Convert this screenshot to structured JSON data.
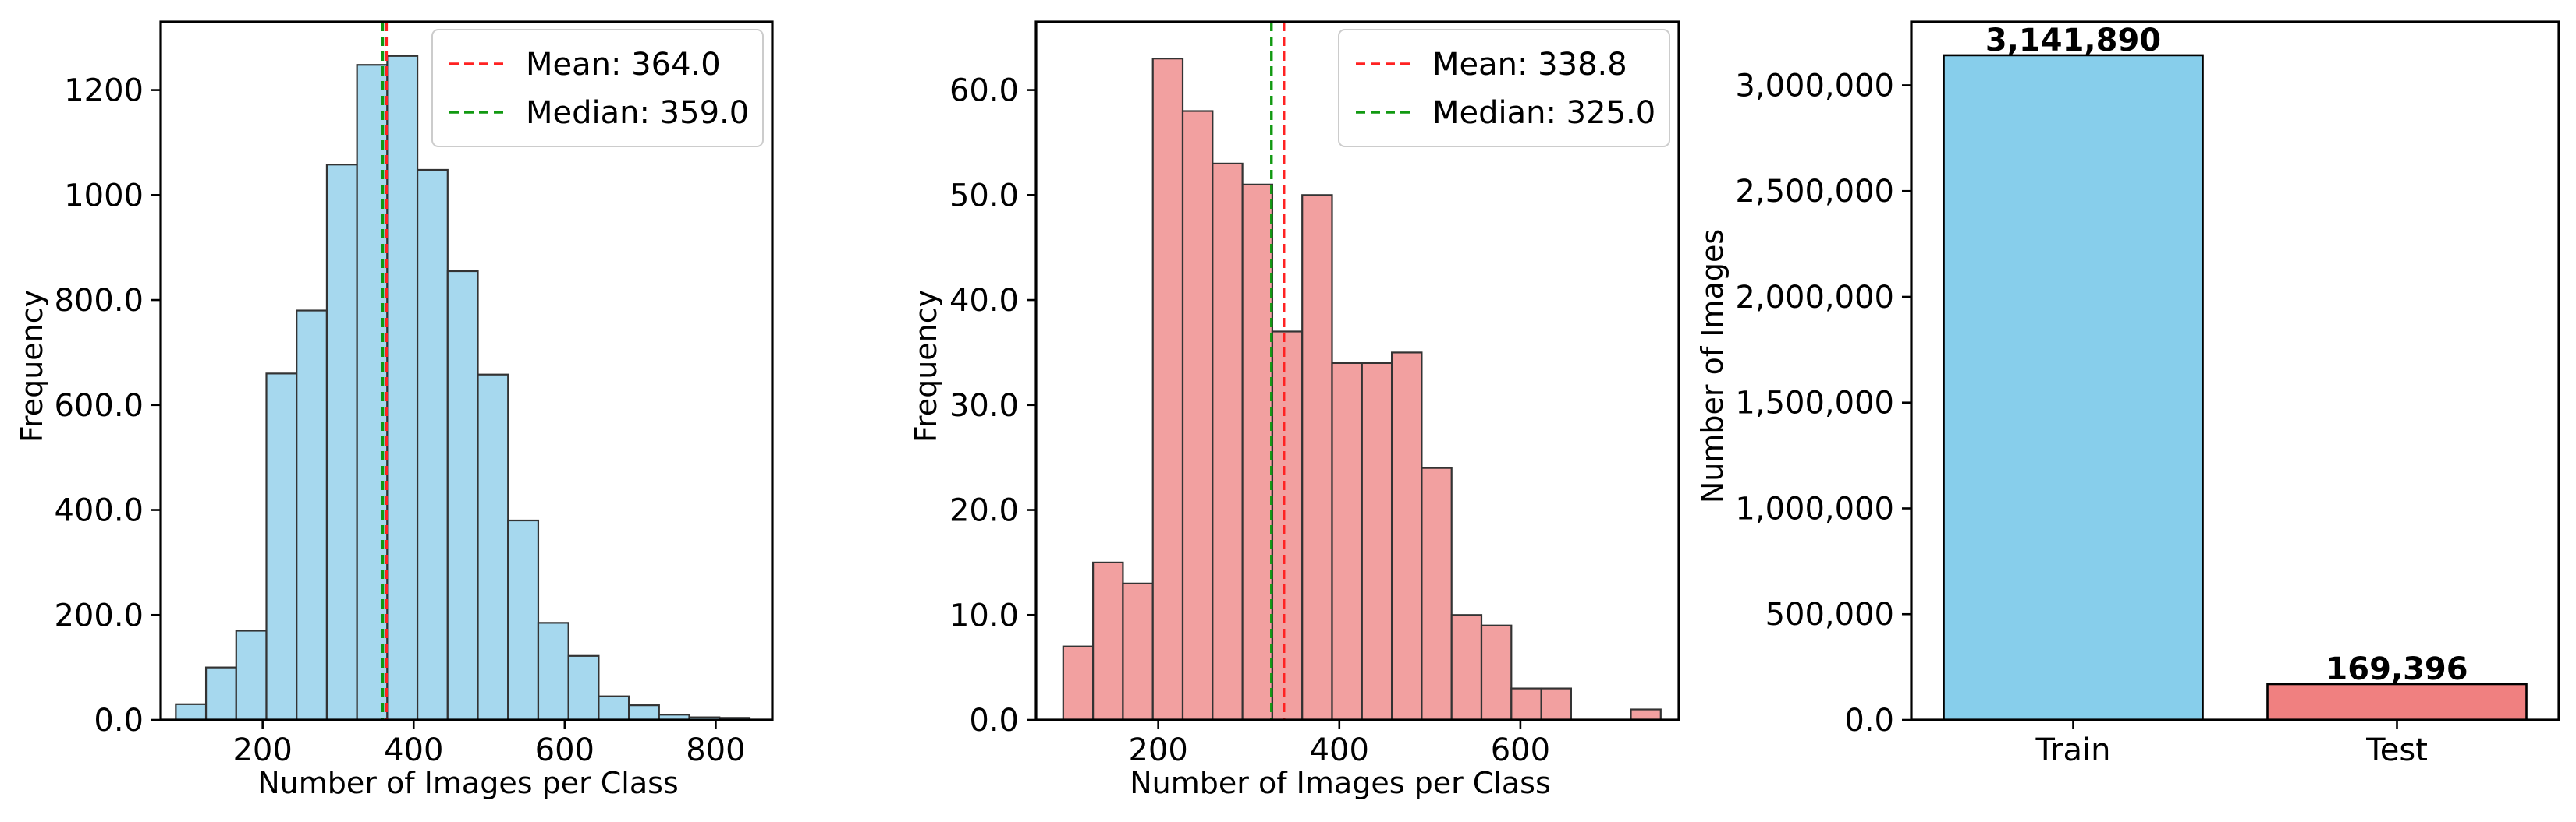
{
  "colors": {
    "train_hist": "#a6d8ee",
    "test_hist": "#f2a0a0",
    "mean_line": "#ff2222",
    "median_line": "#119911",
    "train_bar": "#87ceeb",
    "test_bar": "#f08080"
  },
  "chart_data": [
    {
      "type": "bar",
      "subtype": "histogram",
      "xlabel": "Number of Images per Class",
      "ylabel": "Frequency",
      "xlim": [
        65,
        875
      ],
      "ylim": [
        0,
        1330
      ],
      "xticks": [
        200,
        400,
        600,
        800
      ],
      "yticks": [
        0,
        200,
        400,
        600,
        800,
        1000,
        1200
      ],
      "ytick_labels": [
        "0.0",
        "200.0",
        "400.0",
        "600.0",
        "800.0",
        "1000",
        "1200"
      ],
      "bins": [
        {
          "x0": 85,
          "x1": 125,
          "count": 30
        },
        {
          "x0": 125,
          "x1": 165,
          "count": 100
        },
        {
          "x0": 165,
          "x1": 205,
          "count": 170
        },
        {
          "x0": 205,
          "x1": 245,
          "count": 660
        },
        {
          "x0": 245,
          "x1": 285,
          "count": 780
        },
        {
          "x0": 285,
          "x1": 325,
          "count": 1058
        },
        {
          "x0": 325,
          "x1": 365,
          "count": 1248
        },
        {
          "x0": 365,
          "x1": 405,
          "count": 1265
        },
        {
          "x0": 405,
          "x1": 445,
          "count": 1048
        },
        {
          "x0": 445,
          "x1": 485,
          "count": 855
        },
        {
          "x0": 485,
          "x1": 525,
          "count": 658
        },
        {
          "x0": 525,
          "x1": 565,
          "count": 380
        },
        {
          "x0": 565,
          "x1": 605,
          "count": 185
        },
        {
          "x0": 605,
          "x1": 645,
          "count": 122
        },
        {
          "x0": 645,
          "x1": 685,
          "count": 45
        },
        {
          "x0": 685,
          "x1": 725,
          "count": 28
        },
        {
          "x0": 725,
          "x1": 765,
          "count": 10
        },
        {
          "x0": 765,
          "x1": 805,
          "count": 5
        },
        {
          "x0": 805,
          "x1": 845,
          "count": 4
        }
      ],
      "mean": 364.0,
      "median": 359.0,
      "legend": {
        "mean_label": "Mean: 364.0",
        "median_label": "Median: 359.0",
        "location": "top-right"
      }
    },
    {
      "type": "bar",
      "subtype": "histogram",
      "xlabel": "Number of Images per Class",
      "ylabel": "Frequency",
      "xlim": [
        65,
        775
      ],
      "ylim": [
        0,
        66.5
      ],
      "xticks": [
        200,
        400,
        600
      ],
      "yticks": [
        0,
        10,
        20,
        30,
        40,
        50,
        60
      ],
      "ytick_labels": [
        "0.0",
        "10.0",
        "20.0",
        "30.0",
        "40.0",
        "50.0",
        "60.0"
      ],
      "bins": [
        {
          "x0": 95,
          "x1": 128,
          "count": 7
        },
        {
          "x0": 128,
          "x1": 161,
          "count": 15
        },
        {
          "x0": 161,
          "x1": 194,
          "count": 13
        },
        {
          "x0": 194,
          "x1": 227,
          "count": 63
        },
        {
          "x0": 227,
          "x1": 260,
          "count": 58
        },
        {
          "x0": 260,
          "x1": 293,
          "count": 53
        },
        {
          "x0": 293,
          "x1": 326,
          "count": 51
        },
        {
          "x0": 326,
          "x1": 359,
          "count": 37
        },
        {
          "x0": 359,
          "x1": 392,
          "count": 50
        },
        {
          "x0": 392,
          "x1": 425,
          "count": 34
        },
        {
          "x0": 425,
          "x1": 458,
          "count": 34
        },
        {
          "x0": 458,
          "x1": 491,
          "count": 35
        },
        {
          "x0": 491,
          "x1": 524,
          "count": 24
        },
        {
          "x0": 524,
          "x1": 557,
          "count": 10
        },
        {
          "x0": 557,
          "x1": 590,
          "count": 9
        },
        {
          "x0": 590,
          "x1": 623,
          "count": 3
        },
        {
          "x0": 623,
          "x1": 656,
          "count": 3
        },
        {
          "x0": 722,
          "x1": 755,
          "count": 1
        }
      ],
      "mean": 338.8,
      "median": 325.0,
      "legend": {
        "mean_label": "Mean: 338.8",
        "median_label": "Median: 325.0",
        "location": "top-right"
      }
    },
    {
      "type": "bar",
      "categories": [
        "Train",
        "Test"
      ],
      "values": [
        3141890,
        169396
      ],
      "value_labels": [
        "3,141,890",
        "169,396"
      ],
      "ylabel": "Number of Images",
      "xlabel": "",
      "ylim": [
        0,
        3300000
      ],
      "yticks": [
        0,
        500000,
        1000000,
        1500000,
        2000000,
        2500000,
        3000000
      ],
      "ytick_labels": [
        "0.0",
        "500,000",
        "1,000,000",
        "1,500,000",
        "2,000,000",
        "2,500,000",
        "3,000,000"
      ]
    }
  ]
}
